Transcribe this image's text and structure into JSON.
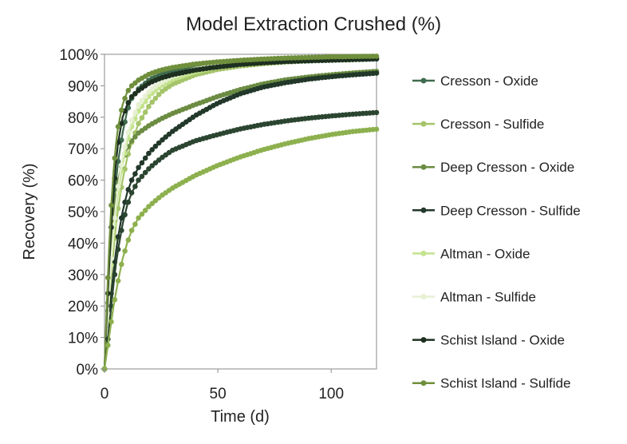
{
  "chart_data": {
    "type": "line",
    "title": "Model Extraction Crushed (%)",
    "xlabel": "Time  (d)",
    "ylabel": "Recovery (%)",
    "xlim": [
      0,
      120
    ],
    "ylim": [
      0,
      100
    ],
    "xticks": [
      0,
      50,
      100
    ],
    "yticks": [
      0,
      10,
      20,
      30,
      40,
      50,
      60,
      70,
      80,
      90,
      100
    ],
    "y_tick_suffix": "%",
    "grid": false,
    "legend_position": "right",
    "x": [
      0,
      1,
      2,
      3,
      4,
      5,
      6,
      8,
      10,
      12,
      15,
      20,
      25,
      30,
      40,
      50,
      60,
      70,
      80,
      90,
      100,
      110,
      120
    ],
    "series": [
      {
        "name": "Cresson - Oxide",
        "color": "#3f6b4e",
        "values": [
          0,
          12,
          25,
          38,
          50,
          59,
          66,
          75,
          82,
          86,
          89,
          92,
          93.5,
          94.5,
          95.5,
          96.3,
          96.9,
          97.3,
          97.6,
          97.9,
          98.1,
          98.3,
          98.5
        ]
      },
      {
        "name": "Cresson - Sulfide",
        "color": "#a5c46a",
        "values": [
          0,
          9,
          20,
          30,
          38,
          45,
          51,
          60,
          67,
          72,
          78,
          84,
          88,
          90.5,
          93.5,
          95.2,
          96.3,
          97,
          97.6,
          98,
          98.3,
          98.6,
          98.8
        ]
      },
      {
        "name": "Deep Cresson - Oxide",
        "color": "#6b8c42",
        "values": [
          0,
          14,
          28,
          40,
          48,
          55,
          60,
          66,
          70,
          72.5,
          75,
          77.5,
          79.5,
          81.2,
          84,
          86.6,
          88.8,
          90.6,
          91.9,
          92.8,
          93.5,
          94.1,
          94.6
        ]
      },
      {
        "name": "Deep Cresson - Sulfide",
        "color": "#22382a",
        "values": [
          0,
          8,
          16,
          24,
          31,
          37,
          42,
          50,
          56,
          60,
          64,
          69,
          72.5,
          75.5,
          80.5,
          84.5,
          87.5,
          89.6,
          91,
          92.1,
          92.9,
          93.5,
          94
        ]
      },
      {
        "name": "Altman - Oxide",
        "color": "#c4e38e",
        "values": [
          0,
          10,
          22,
          33,
          42,
          50,
          56,
          65,
          72,
          77,
          82,
          87,
          90,
          92,
          94.5,
          96,
          96.9,
          97.5,
          97.9,
          98.2,
          98.5,
          98.7,
          98.9
        ]
      },
      {
        "name": "Altman - Sulfide",
        "color": "#e6f0d2",
        "values": [
          0,
          11,
          24,
          35,
          44,
          52,
          58,
          67,
          74,
          79,
          84,
          88.5,
          91,
          93,
          95.2,
          96.5,
          97.3,
          97.8,
          98.2,
          98.5,
          98.7,
          98.9,
          99
        ]
      },
      {
        "name": "Schist Island - Oxide",
        "color": "#1e3020",
        "values": [
          0,
          16,
          32,
          45,
          56,
          65,
          72,
          80,
          84,
          86.5,
          88.5,
          91,
          92.5,
          93.5,
          95,
          96,
          96.8,
          97.3,
          97.7,
          98,
          98.2,
          98.4,
          98.6
        ]
      },
      {
        "name": "Schist Island - Sulfide",
        "color": "#6f8f3c",
        "values": [
          0,
          20,
          38,
          52,
          63,
          71,
          77,
          84,
          88,
          90,
          91.8,
          93.8,
          95,
          95.8,
          96.9,
          97.6,
          98.1,
          98.5,
          98.8,
          99,
          99.2,
          99.3,
          99.4
        ]
      },
      {
        "name": "",
        "color": "#2b4530",
        "values": [
          0,
          6,
          13,
          20,
          27,
          33,
          38,
          46,
          52,
          56,
          60,
          64,
          67,
          69.5,
          72.5,
          74.5,
          76.3,
          77.7,
          78.8,
          79.7,
          80.4,
          81,
          81.5
        ]
      },
      {
        "name": "",
        "color": "#8db04e",
        "values": [
          0,
          5,
          10,
          15,
          20,
          24,
          28,
          35,
          40,
          44,
          48,
          52,
          55,
          57.5,
          61.5,
          64.7,
          67.4,
          69.7,
          71.6,
          73.2,
          74.5,
          75.5,
          76.2
        ]
      }
    ]
  }
}
